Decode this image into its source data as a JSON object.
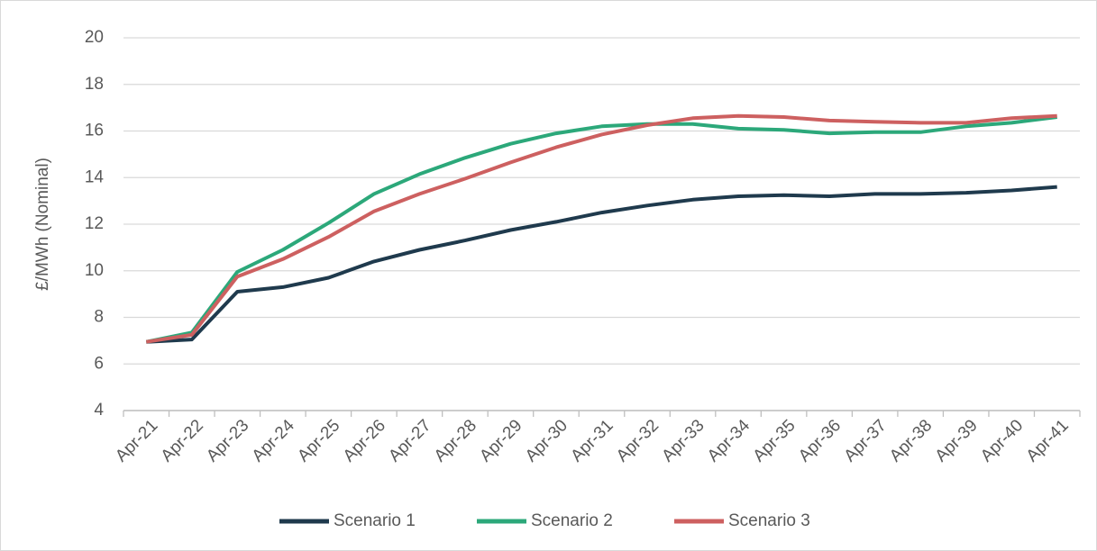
{
  "chart_data": {
    "type": "line",
    "y_label": "£/MWh (Nominal)",
    "categories": [
      "Apr-21",
      "Apr-22",
      "Apr-23",
      "Apr-24",
      "Apr-25",
      "Apr-26",
      "Apr-27",
      "Apr-28",
      "Apr-29",
      "Apr-30",
      "Apr-31",
      "Apr-32",
      "Apr-33",
      "Apr-34",
      "Apr-35",
      "Apr-36",
      "Apr-37",
      "Apr-38",
      "Apr-39",
      "Apr-40",
      "Apr-41"
    ],
    "series": [
      {
        "name": "Scenario 1",
        "color": "#1f3a4d",
        "values": [
          6.95,
          7.05,
          9.1,
          9.3,
          9.7,
          10.4,
          10.9,
          11.3,
          11.75,
          12.1,
          12.5,
          12.8,
          13.05,
          13.2,
          13.25,
          13.2,
          13.3,
          13.3,
          13.35,
          13.45,
          13.6
        ]
      },
      {
        "name": "Scenario 2",
        "color": "#2ca87a",
        "values": [
          6.95,
          7.35,
          9.95,
          10.9,
          12.05,
          13.3,
          14.15,
          14.85,
          15.45,
          15.9,
          16.2,
          16.3,
          16.3,
          16.1,
          16.05,
          15.9,
          15.95,
          15.95,
          16.2,
          16.35,
          16.6
        ]
      },
      {
        "name": "Scenario 3",
        "color": "#cd6060",
        "values": [
          6.95,
          7.25,
          9.75,
          10.5,
          11.45,
          12.55,
          13.3,
          13.95,
          14.65,
          15.3,
          15.85,
          16.25,
          16.55,
          16.65,
          16.6,
          16.45,
          16.4,
          16.35,
          16.35,
          16.55,
          16.65
        ]
      }
    ],
    "ylim": [
      4,
      20
    ],
    "yticks": [
      4,
      6,
      8,
      10,
      12,
      14,
      16,
      18,
      20
    ],
    "grid": true,
    "legend": "bottom"
  }
}
